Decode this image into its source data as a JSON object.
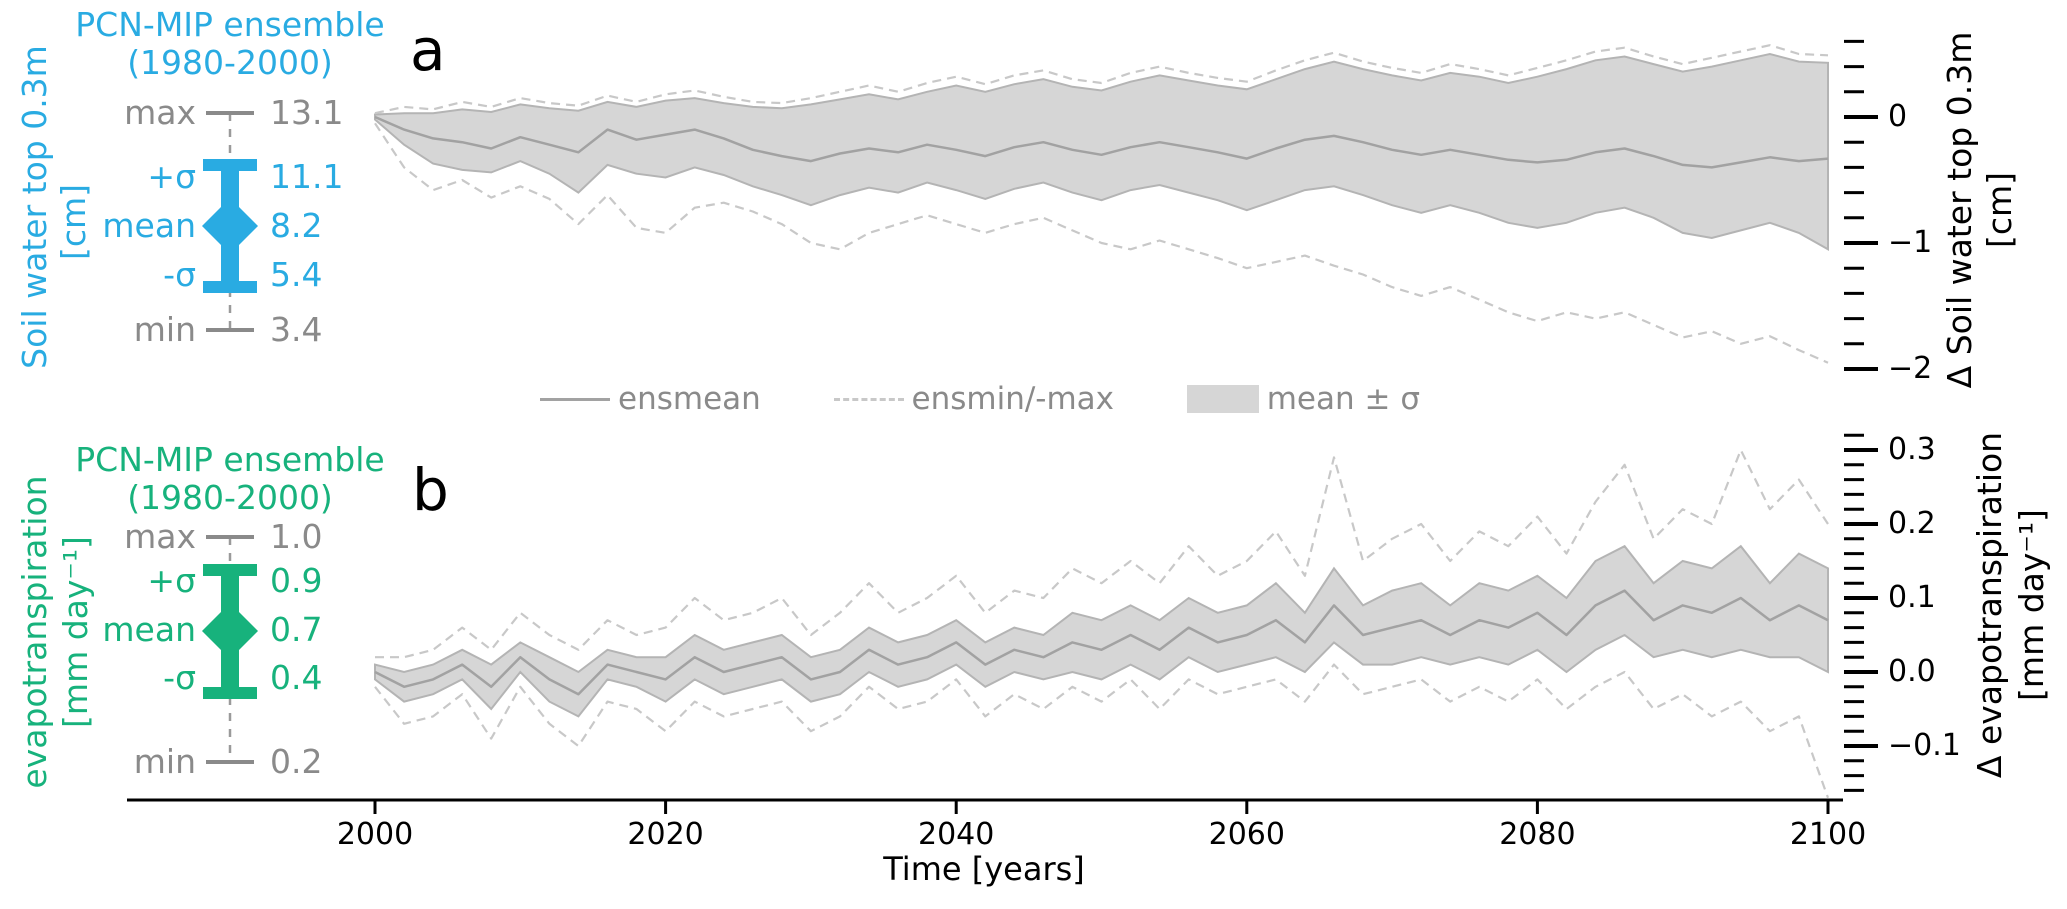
{
  "colors": {
    "accent_a": "#29abe2",
    "accent_b": "#17b27c",
    "band": "#d6d6d6",
    "band_edge": "#b4b4b4",
    "mean_line": "#a2a2a2",
    "minmax_line": "#c8c8c8",
    "muted_text": "#8a8a8a",
    "axis": "#000000"
  },
  "panels": {
    "a": {
      "letter": "a",
      "ylabel_left": "Soil water top 0.3m",
      "ylabel_left_units": "[cm]",
      "ylabel_right": "Δ Soil water top 0.3m",
      "ylabel_right_units": "[cm]",
      "ensemble": {
        "title": "PCN-MIP ensemble",
        "subtitle": "(1980-2000)"
      },
      "stats": [
        {
          "label": "max",
          "value": "13.1",
          "tone": "muted"
        },
        {
          "label": "+σ",
          "value": "11.1",
          "tone": "accent"
        },
        {
          "label": "mean",
          "value": "8.2",
          "tone": "accent"
        },
        {
          "label": "-σ",
          "value": "5.4",
          "tone": "accent"
        },
        {
          "label": "min",
          "value": "3.4",
          "tone": "muted"
        }
      ],
      "yticks": [
        {
          "v": 0,
          "label": "0"
        },
        {
          "v": -1,
          "label": "−1"
        },
        {
          "v": -2,
          "label": "−2"
        }
      ]
    },
    "b": {
      "letter": "b",
      "ylabel_left": "evapotranspiration",
      "ylabel_left_units": "[mm day⁻¹]",
      "ylabel_right": "Δ evapotranspiration",
      "ylabel_right_units": "[mm day⁻¹]",
      "ensemble": {
        "title": "PCN-MIP ensemble",
        "subtitle": "(1980-2000)"
      },
      "stats": [
        {
          "label": "max",
          "value": "1.0",
          "tone": "muted"
        },
        {
          "label": "+σ",
          "value": "0.9",
          "tone": "accent"
        },
        {
          "label": "mean",
          "value": "0.7",
          "tone": "accent"
        },
        {
          "label": "-σ",
          "value": "0.4",
          "tone": "accent"
        },
        {
          "label": "min",
          "value": "0.2",
          "tone": "muted"
        }
      ],
      "yticks": [
        {
          "v": 0.3,
          "label": "0.3"
        },
        {
          "v": 0.2,
          "label": "0.2"
        },
        {
          "v": 0.1,
          "label": "0.1"
        },
        {
          "v": 0.0,
          "label": "0.0"
        },
        {
          "v": -0.1,
          "label": "−0.1"
        }
      ]
    }
  },
  "legend": {
    "items": [
      {
        "label": "ensmean",
        "swatch": "line"
      },
      {
        "label": "ensmin/-max",
        "swatch": "dashed"
      },
      {
        "label": "mean ± σ",
        "swatch": "box"
      }
    ]
  },
  "x_axis": {
    "label": "Time [years]",
    "ticks": [
      {
        "v": 2000,
        "label": "2000"
      },
      {
        "v": 2020,
        "label": "2020"
      },
      {
        "v": 2040,
        "label": "2040"
      },
      {
        "v": 2060,
        "label": "2060"
      },
      {
        "v": 2080,
        "label": "2080"
      },
      {
        "v": 2100,
        "label": "2100"
      }
    ]
  },
  "chart_data": [
    {
      "id": "a",
      "type": "area",
      "title": "a",
      "ylabel": "Δ Soil water top 0.3m [cm]",
      "xlabel": "Time [years]",
      "x_start": 2000,
      "x_step": 2,
      "xlim": [
        2000,
        2100
      ],
      "ylim": [
        -2.17,
        0.73
      ],
      "grid": false,
      "legend_position": "center between panels",
      "series": [
        {
          "name": "ensmean",
          "values": [
            0.0,
            -0.1,
            -0.17,
            -0.2,
            -0.25,
            -0.16,
            -0.22,
            -0.28,
            -0.1,
            -0.18,
            -0.14,
            -0.1,
            -0.17,
            -0.26,
            -0.31,
            -0.35,
            -0.29,
            -0.25,
            -0.28,
            -0.22,
            -0.26,
            -0.31,
            -0.24,
            -0.2,
            -0.26,
            -0.3,
            -0.24,
            -0.2,
            -0.24,
            -0.28,
            -0.33,
            -0.25,
            -0.18,
            -0.15,
            -0.2,
            -0.26,
            -0.3,
            -0.26,
            -0.3,
            -0.34,
            -0.36,
            -0.34,
            -0.28,
            -0.25,
            -0.31,
            -0.38,
            -0.4,
            -0.36,
            -0.32,
            -0.35,
            -0.33
          ]
        },
        {
          "name": "band_top",
          "values": [
            0.02,
            0.03,
            0.03,
            0.06,
            0.04,
            0.1,
            0.07,
            0.05,
            0.12,
            0.08,
            0.13,
            0.15,
            0.11,
            0.08,
            0.07,
            0.1,
            0.14,
            0.18,
            0.14,
            0.2,
            0.25,
            0.2,
            0.26,
            0.3,
            0.24,
            0.21,
            0.28,
            0.33,
            0.29,
            0.25,
            0.22,
            0.3,
            0.38,
            0.44,
            0.38,
            0.33,
            0.29,
            0.35,
            0.32,
            0.27,
            0.32,
            0.38,
            0.45,
            0.48,
            0.42,
            0.36,
            0.4,
            0.45,
            0.5,
            0.44,
            0.43
          ]
        },
        {
          "name": "band_bottom",
          "values": [
            -0.02,
            -0.22,
            -0.37,
            -0.42,
            -0.44,
            -0.35,
            -0.45,
            -0.6,
            -0.38,
            -0.45,
            -0.48,
            -0.4,
            -0.46,
            -0.55,
            -0.62,
            -0.7,
            -0.62,
            -0.56,
            -0.6,
            -0.52,
            -0.58,
            -0.65,
            -0.57,
            -0.52,
            -0.6,
            -0.66,
            -0.58,
            -0.54,
            -0.6,
            -0.66,
            -0.74,
            -0.66,
            -0.58,
            -0.55,
            -0.62,
            -0.7,
            -0.76,
            -0.7,
            -0.76,
            -0.84,
            -0.88,
            -0.84,
            -0.76,
            -0.72,
            -0.8,
            -0.92,
            -0.96,
            -0.9,
            -0.84,
            -0.92,
            -1.05
          ]
        },
        {
          "name": "ensmax",
          "values": [
            0.03,
            0.08,
            0.06,
            0.12,
            0.08,
            0.15,
            0.11,
            0.09,
            0.17,
            0.12,
            0.18,
            0.21,
            0.16,
            0.12,
            0.11,
            0.15,
            0.2,
            0.25,
            0.2,
            0.27,
            0.32,
            0.26,
            0.33,
            0.37,
            0.3,
            0.27,
            0.35,
            0.4,
            0.35,
            0.31,
            0.28,
            0.37,
            0.45,
            0.51,
            0.44,
            0.39,
            0.35,
            0.42,
            0.38,
            0.33,
            0.39,
            0.45,
            0.52,
            0.55,
            0.48,
            0.42,
            0.47,
            0.52,
            0.57,
            0.5,
            0.49
          ]
        },
        {
          "name": "ensmin",
          "values": [
            -0.05,
            -0.4,
            -0.58,
            -0.5,
            -0.64,
            -0.55,
            -0.65,
            -0.85,
            -0.62,
            -0.88,
            -0.92,
            -0.72,
            -0.68,
            -0.75,
            -0.85,
            -1.0,
            -1.05,
            -0.92,
            -0.85,
            -0.78,
            -0.85,
            -0.92,
            -0.85,
            -0.8,
            -0.9,
            -1.0,
            -1.05,
            -0.98,
            -1.05,
            -1.12,
            -1.2,
            -1.15,
            -1.1,
            -1.18,
            -1.25,
            -1.35,
            -1.42,
            -1.35,
            -1.45,
            -1.55,
            -1.62,
            -1.55,
            -1.6,
            -1.55,
            -1.65,
            -1.75,
            -1.7,
            -1.8,
            -1.74,
            -1.85,
            -1.95
          ]
        }
      ],
      "reference_stats": {
        "period": "1980-2000",
        "max": 13.1,
        "plus_sigma": 11.1,
        "mean": 8.2,
        "minus_sigma": 5.4,
        "min": 3.4,
        "units": "cm"
      }
    },
    {
      "id": "b",
      "type": "area",
      "title": "b",
      "ylabel": "Δ evapotranspiration [mm day⁻¹]",
      "xlabel": "Time [years]",
      "x_start": 2000,
      "x_step": 2,
      "xlim": [
        2000,
        2100
      ],
      "ylim": [
        -0.173,
        0.347
      ],
      "grid": false,
      "legend_position": "center between panels",
      "series": [
        {
          "name": "ensmean",
          "values": [
            0.0,
            -0.02,
            -0.01,
            0.01,
            -0.02,
            0.02,
            -0.01,
            -0.03,
            0.01,
            0.0,
            -0.01,
            0.02,
            0.0,
            0.01,
            0.02,
            -0.01,
            0.0,
            0.03,
            0.01,
            0.02,
            0.04,
            0.01,
            0.03,
            0.02,
            0.04,
            0.03,
            0.05,
            0.03,
            0.06,
            0.04,
            0.05,
            0.07,
            0.04,
            0.09,
            0.05,
            0.06,
            0.07,
            0.05,
            0.07,
            0.06,
            0.08,
            0.05,
            0.09,
            0.11,
            0.07,
            0.09,
            0.08,
            0.1,
            0.07,
            0.09,
            0.07
          ]
        },
        {
          "name": "band_top",
          "values": [
            0.01,
            0.0,
            0.01,
            0.03,
            0.01,
            0.04,
            0.02,
            0.0,
            0.03,
            0.02,
            0.02,
            0.05,
            0.03,
            0.04,
            0.05,
            0.02,
            0.03,
            0.06,
            0.04,
            0.05,
            0.07,
            0.04,
            0.06,
            0.05,
            0.08,
            0.07,
            0.09,
            0.07,
            0.1,
            0.08,
            0.09,
            0.12,
            0.08,
            0.14,
            0.09,
            0.11,
            0.12,
            0.09,
            0.12,
            0.11,
            0.13,
            0.1,
            0.15,
            0.17,
            0.12,
            0.15,
            0.14,
            0.17,
            0.12,
            0.16,
            0.14
          ]
        },
        {
          "name": "band_bottom",
          "values": [
            -0.01,
            -0.04,
            -0.03,
            -0.01,
            -0.05,
            0.0,
            -0.04,
            -0.06,
            -0.01,
            -0.02,
            -0.04,
            -0.01,
            -0.03,
            -0.02,
            -0.01,
            -0.04,
            -0.03,
            0.0,
            -0.02,
            -0.01,
            0.01,
            -0.02,
            0.0,
            -0.01,
            0.0,
            -0.01,
            0.01,
            -0.01,
            0.02,
            0.0,
            0.01,
            0.02,
            0.0,
            0.04,
            0.01,
            0.01,
            0.02,
            0.01,
            0.02,
            0.01,
            0.03,
            0.0,
            0.03,
            0.05,
            0.02,
            0.03,
            0.02,
            0.03,
            0.02,
            0.02,
            0.0
          ]
        },
        {
          "name": "ensmax",
          "values": [
            0.02,
            0.02,
            0.03,
            0.06,
            0.03,
            0.08,
            0.05,
            0.03,
            0.07,
            0.05,
            0.06,
            0.1,
            0.07,
            0.08,
            0.1,
            0.05,
            0.08,
            0.12,
            0.08,
            0.1,
            0.13,
            0.08,
            0.11,
            0.1,
            0.14,
            0.12,
            0.15,
            0.12,
            0.17,
            0.13,
            0.15,
            0.19,
            0.13,
            0.29,
            0.15,
            0.18,
            0.2,
            0.15,
            0.19,
            0.17,
            0.21,
            0.16,
            0.23,
            0.28,
            0.18,
            0.22,
            0.2,
            0.3,
            0.22,
            0.26,
            0.2
          ]
        },
        {
          "name": "ensmin",
          "values": [
            -0.02,
            -0.07,
            -0.06,
            -0.03,
            -0.09,
            -0.02,
            -0.07,
            -0.1,
            -0.04,
            -0.05,
            -0.08,
            -0.04,
            -0.06,
            -0.05,
            -0.04,
            -0.08,
            -0.06,
            -0.02,
            -0.05,
            -0.04,
            -0.01,
            -0.06,
            -0.03,
            -0.05,
            -0.02,
            -0.04,
            -0.01,
            -0.05,
            -0.01,
            -0.03,
            -0.02,
            -0.01,
            -0.04,
            0.01,
            -0.03,
            -0.02,
            -0.01,
            -0.04,
            -0.02,
            -0.04,
            -0.01,
            -0.05,
            -0.02,
            0.0,
            -0.05,
            -0.03,
            -0.06,
            -0.04,
            -0.08,
            -0.06,
            -0.17
          ]
        }
      ],
      "reference_stats": {
        "period": "1980-2000",
        "max": 1.0,
        "plus_sigma": 0.9,
        "mean": 0.7,
        "minus_sigma": 0.4,
        "min": 0.2,
        "units": "mm day⁻¹"
      }
    }
  ]
}
